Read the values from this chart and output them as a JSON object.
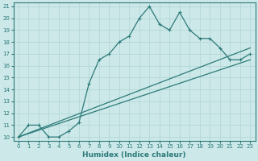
{
  "xlabel": "Humidex (Indice chaleur)",
  "bg_color": "#cce8e8",
  "line_color": "#2d7a7a",
  "grid_color": "#b0d4d4",
  "xlim": [
    -0.5,
    23.5
  ],
  "ylim": [
    9.7,
    21.3
  ],
  "xticks": [
    0,
    1,
    2,
    3,
    4,
    5,
    6,
    7,
    8,
    9,
    10,
    11,
    12,
    13,
    14,
    15,
    16,
    17,
    18,
    19,
    20,
    21,
    22,
    23
  ],
  "yticks": [
    10,
    11,
    12,
    13,
    14,
    15,
    16,
    17,
    18,
    19,
    20,
    21
  ],
  "line1_x": [
    0,
    1,
    2,
    3,
    4,
    5,
    6,
    7,
    8,
    9,
    10,
    11,
    12,
    13,
    14,
    15,
    16,
    17,
    18,
    19,
    20,
    21,
    22,
    23
  ],
  "line1_y": [
    10,
    11,
    11,
    10,
    10,
    10.5,
    11.2,
    14.5,
    16.5,
    17,
    18,
    18.5,
    20.0,
    21.0,
    19.5,
    19.0,
    20.5,
    19.0,
    18.3,
    18.3,
    17.5,
    16.5,
    16.5,
    17.0
  ],
  "line2_x": [
    0,
    23
  ],
  "line2_y": [
    10,
    17.5
  ],
  "line3_x": [
    0,
    23
  ],
  "line3_y": [
    10,
    16.5
  ],
  "xlabel_fontsize": 6.5,
  "tick_fontsize": 5.0
}
